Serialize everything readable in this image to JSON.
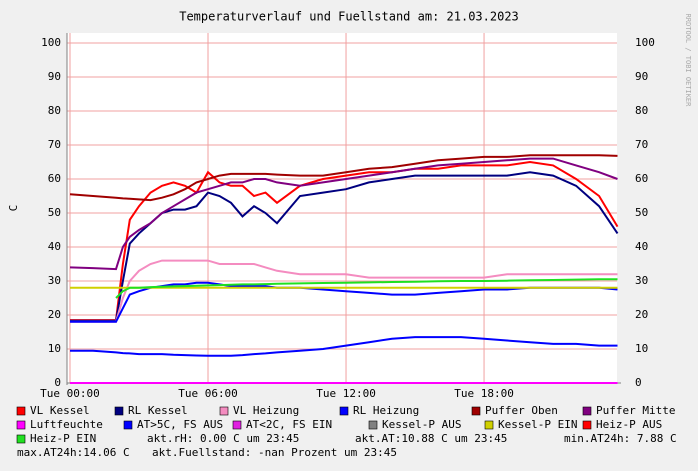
{
  "chart_data": {
    "type": "line",
    "title": "Temperaturverlauf und Fuellstand am: 21.03.2023",
    "y_label": "C",
    "watermark": "RRDTOOL / TOBI OETIKER",
    "xlim": [
      -0.13,
      23.78
    ],
    "xticks": [
      {
        "value": 0,
        "label": "Tue 00:00"
      },
      {
        "value": 6,
        "label": "Tue 06:00"
      },
      {
        "value": 12,
        "label": "Tue 12:00"
      },
      {
        "value": 18,
        "label": "Tue 18:00"
      }
    ],
    "ylim": [
      0,
      100
    ],
    "yticks": [
      0,
      10,
      20,
      30,
      40,
      50,
      60,
      70,
      80,
      90,
      100
    ],
    "grid": true,
    "x": [
      0,
      1,
      2,
      2.3,
      2.6,
      3,
      3.5,
      4,
      4.5,
      5,
      5.5,
      6,
      6.5,
      7,
      7.5,
      8,
      8.5,
      9,
      10,
      11,
      12,
      13,
      14,
      15,
      16,
      17,
      18,
      19,
      20,
      21,
      22,
      23,
      23.8
    ],
    "series": [
      {
        "name": "VL Kessel",
        "color": "#ff0000",
        "values": [
          18.5,
          18.5,
          18.5,
          35,
          48,
          52,
          56,
          58,
          59,
          58,
          56,
          62,
          59,
          58,
          58,
          55,
          56,
          53,
          58,
          60,
          61,
          62,
          62,
          63,
          63,
          64,
          64,
          64,
          65,
          64,
          60,
          55,
          46
        ]
      },
      {
        "name": "RL Kessel",
        "color": "#000080",
        "values": [
          18.3,
          18.3,
          18.3,
          30,
          41,
          44,
          47,
          50,
          51,
          51,
          52,
          56,
          55,
          53,
          49,
          52,
          50,
          47,
          55,
          56,
          57,
          59,
          60,
          61,
          61,
          61,
          61,
          61,
          62,
          61,
          58,
          52,
          44
        ]
      },
      {
        "name": "VL Heizung",
        "color": "#f48cc0",
        "values": [
          18,
          18,
          18,
          25,
          30,
          33,
          35,
          36,
          36,
          36,
          36,
          36,
          35,
          35,
          35,
          35,
          34,
          33,
          32,
          32,
          32,
          31,
          31,
          31,
          31,
          31,
          31,
          32,
          32,
          32,
          32,
          32,
          32
        ]
      },
      {
        "name": "RL Heizung",
        "color": "#0000ff",
        "values": [
          18,
          18,
          18,
          22,
          26,
          27,
          28,
          28.5,
          29,
          29,
          29.5,
          29.5,
          29,
          28.5,
          28.5,
          28.5,
          28.5,
          28,
          28,
          27.5,
          27,
          26.5,
          26,
          26,
          26.5,
          27,
          27.5,
          27.5,
          28,
          28,
          28,
          28,
          27.5
        ]
      },
      {
        "name": "Puffer Oben",
        "color": "#a00000",
        "values": [
          55.5,
          55,
          54.5,
          54.3,
          54.2,
          54,
          53.8,
          54.5,
          55.5,
          57,
          59,
          60,
          61,
          61.5,
          61.5,
          61.5,
          61.5,
          61.3,
          61,
          61,
          62,
          63,
          63.5,
          64.5,
          65.5,
          66,
          66.5,
          66.5,
          67,
          67,
          67,
          67,
          66.8
        ]
      },
      {
        "name": "Puffer Mitte",
        "color": "#800080",
        "values": [
          34,
          33.8,
          33.5,
          40,
          43,
          45,
          47,
          50,
          52,
          54,
          56,
          57,
          58,
          59,
          59,
          60,
          60,
          59,
          58,
          59,
          60,
          61,
          62,
          63,
          64,
          64.5,
          65,
          65.5,
          66,
          66,
          64,
          62,
          60
        ]
      },
      {
        "name": "Luftfeuchte",
        "color": "#ff00ff",
        "values": [
          0,
          0,
          0,
          0,
          0,
          0,
          0,
          0,
          0,
          0,
          0,
          0,
          0,
          0,
          0,
          0,
          0,
          0,
          0,
          0,
          0,
          0,
          0,
          0,
          0,
          0,
          0,
          0,
          0,
          0,
          0,
          0,
          0
        ]
      },
      {
        "name": "AT>5C, FS AUS",
        "color": "#0000ff",
        "values": [
          9.5,
          9.5,
          9,
          8.8,
          8.7,
          8.5,
          8.5,
          8.5,
          8.3,
          8.2,
          8.1,
          8,
          8,
          8,
          8.2,
          8.5,
          8.7,
          9,
          9.5,
          10,
          11,
          12,
          13,
          13.5,
          13.5,
          13.5,
          13,
          12.5,
          12,
          11.5,
          11.5,
          11,
          11
        ]
      },
      {
        "name": "AT<2C, FS EIN",
        "color": "#e020e0",
        "values": [
          null,
          null,
          null,
          null,
          null,
          null,
          null,
          null,
          null,
          null,
          null,
          null,
          null,
          null,
          null,
          null,
          null,
          null,
          null,
          null,
          null,
          null,
          null,
          null,
          null,
          null,
          null,
          null,
          null,
          null,
          null,
          null,
          null
        ]
      },
      {
        "name": "Kessel-P AUS",
        "color": "#808080",
        "values": [
          null,
          null,
          null,
          null,
          null,
          null,
          null,
          null,
          null,
          null,
          null,
          null,
          null,
          null,
          null,
          null,
          null,
          null,
          null,
          null,
          null,
          null,
          null,
          null,
          null,
          null,
          null,
          null,
          null,
          null,
          null,
          null,
          null
        ]
      },
      {
        "name": "Kessel-P EIN",
        "color": "#d0d000",
        "values": [
          28,
          28,
          28,
          28,
          28,
          28,
          28,
          28,
          28,
          28,
          28,
          28,
          28,
          28,
          28,
          28,
          28,
          28,
          28,
          28,
          28,
          28,
          28,
          28,
          28,
          28,
          28,
          28,
          28,
          28,
          28,
          28,
          28
        ]
      },
      {
        "name": "Heiz-P AUS",
        "color": "#ff0000",
        "values": [
          null,
          null,
          null,
          null,
          null,
          null,
          null,
          null,
          null,
          null,
          null,
          null,
          null,
          null,
          null,
          null,
          null,
          null,
          null,
          null,
          null,
          null,
          null,
          null,
          null,
          null,
          null,
          null,
          null,
          null,
          null,
          null,
          null
        ]
      },
      {
        "name": "Heiz-P EIN",
        "color": "#20e020",
        "values": [
          null,
          null,
          25,
          27,
          28,
          28,
          28.2,
          28.3,
          28.4,
          28.5,
          28.6,
          28.7,
          28.8,
          28.9,
          29,
          29,
          29.1,
          29.2,
          29.3,
          29.4,
          29.5,
          29.6,
          29.7,
          29.8,
          29.9,
          30,
          30,
          30.1,
          30.2,
          30.3,
          30.4,
          30.5,
          30.5
        ]
      }
    ],
    "annotations": [
      "akt.rH: 0.00 C um 23:45",
      "akt.AT:10.88 C um 23:45",
      "min.AT24h: 7.88 C",
      "max.AT24h:14.06 C",
      "akt.Fuellstand: -nan Prozent um 23:45"
    ]
  }
}
